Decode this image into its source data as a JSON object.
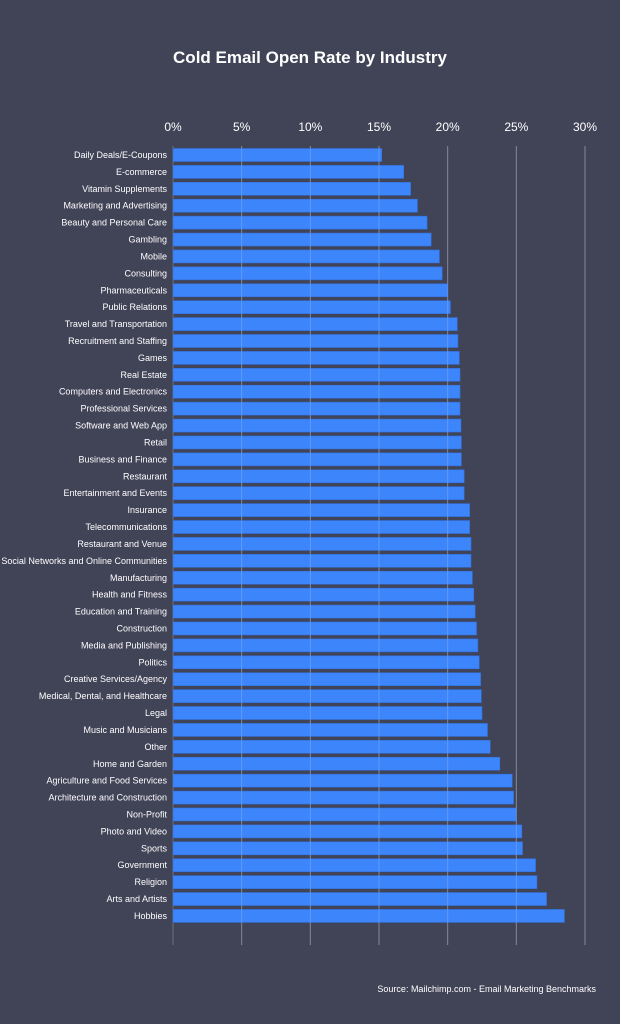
{
  "colors": {
    "background": "#414357",
    "bar": "#3d85fb",
    "grid": "#6b6e82"
  },
  "chart_data": {
    "type": "bar",
    "orientation": "horizontal",
    "title": "Cold Email Open Rate by Industry",
    "source": "Source: Mailchimp.com - Email Marketing Benchmarks",
    "xlim": [
      0,
      30
    ],
    "xticks": [
      "0%",
      "5%",
      "10%",
      "15%",
      "20%",
      "25%",
      "30%"
    ],
    "xtick_values": [
      0,
      5,
      10,
      15,
      20,
      25,
      30
    ],
    "x_axis_position": "top",
    "grid": true,
    "categories": [
      "Daily Deals/E-Coupons",
      "E-commerce",
      "Vitamin Supplements",
      "Marketing and Advertising",
      "Beauty and Personal Care",
      "Gambling",
      "Mobile",
      "Consulting",
      "Pharmaceuticals",
      "Public Relations",
      "Travel and Transportation",
      "Recruitment and Staffing",
      "Games",
      "Real Estate",
      "Computers and Electronics",
      "Professional Services",
      "Software and Web App",
      "Retail",
      "Business and Finance",
      "Restaurant",
      "Entertainment and Events",
      "Insurance",
      "Telecommunications",
      "Restaurant and Venue",
      "Social Networks and Online Communities",
      "Manufacturing",
      "Health and Fitness",
      "Education and Training",
      "Construction",
      "Media and Publishing",
      "Politics",
      "Creative Services/Agency",
      "Medical, Dental, and Healthcare",
      "Legal",
      "Music and Musicians",
      "Other",
      "Home and Garden",
      "Agriculture and Food Services",
      "Architecture and Construction",
      "Non-Profit",
      "Photo and Video",
      "Sports",
      "Government",
      "Religion",
      "Arts and Artists",
      "Hobbies"
    ],
    "values": [
      15.2,
      16.8,
      17.3,
      17.8,
      18.5,
      18.8,
      19.4,
      19.6,
      20.0,
      20.2,
      20.7,
      20.75,
      20.85,
      20.9,
      20.9,
      20.9,
      20.97,
      21.0,
      21.0,
      21.2,
      21.2,
      21.6,
      21.6,
      21.7,
      21.7,
      21.8,
      21.9,
      22.0,
      22.1,
      22.2,
      22.3,
      22.4,
      22.45,
      22.5,
      22.9,
      23.1,
      23.8,
      24.7,
      24.8,
      25.0,
      25.4,
      25.45,
      26.4,
      26.5,
      27.2,
      28.5
    ]
  }
}
